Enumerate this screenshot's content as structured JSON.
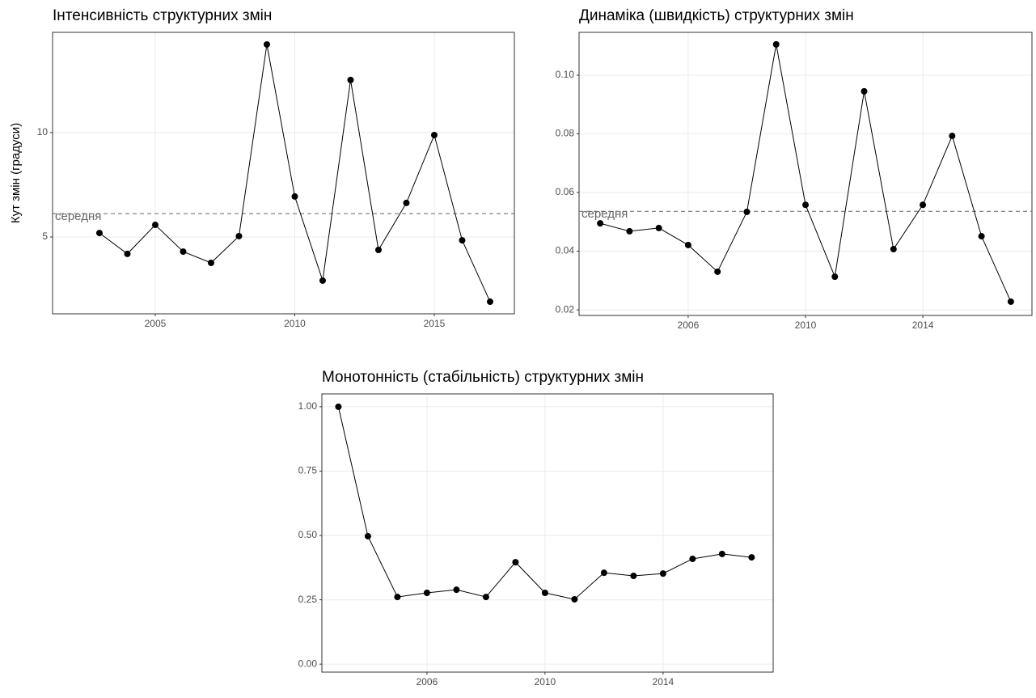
{
  "chart_data": [
    {
      "type": "line",
      "title": "Інтенсивність структурних змін",
      "y_label": "Кут змін (градуси)",
      "x": [
        2003,
        2004,
        2005,
        2006,
        2007,
        2008,
        2009,
        2010,
        2011,
        2012,
        2013,
        2014,
        2015,
        2016,
        2017
      ],
      "values": [
        5.19,
        4.19,
        5.58,
        4.3,
        3.76,
        5.04,
        14.22,
        6.94,
        2.91,
        12.52,
        4.38,
        6.63,
        9.88,
        4.84,
        1.9
      ],
      "color": "#000000",
      "xlim": [
        2001.32,
        2017.87
      ],
      "xticks": [
        2005,
        2010,
        2015
      ],
      "ylim": [
        1.32,
        14.8
      ],
      "yticks": [
        5,
        10
      ],
      "mean_line": {
        "value": 6.12,
        "label": "середня"
      },
      "grid": true
    },
    {
      "type": "line",
      "title": "Динаміка (швидкість) структурних змін",
      "x": [
        2003,
        2004,
        2005,
        2006,
        2007,
        2008,
        2009,
        2010,
        2011,
        2012,
        2013,
        2014,
        2015,
        2016,
        2017
      ],
      "values": [
        0.0495,
        0.0468,
        0.0479,
        0.0421,
        0.033,
        0.0534,
        0.1105,
        0.0558,
        0.0313,
        0.0945,
        0.0407,
        0.0558,
        0.0793,
        0.0451,
        0.0228
      ],
      "color": "#000000",
      "xlim": [
        2002.28,
        2017.72
      ],
      "xticks": [
        2006,
        2010,
        2014
      ],
      "ylim": [
        0.0181,
        0.1146
      ],
      "yticks": [
        {
          "value": 0.02,
          "label": "0.02"
        },
        {
          "value": 0.04,
          "label": "0.04"
        },
        {
          "value": 0.06,
          "label": "0.06"
        },
        {
          "value": 0.08,
          "label": "0.08"
        },
        {
          "value": 0.1,
          "label": "0.10"
        }
      ],
      "mean_line": {
        "value": 0.0536,
        "label": "середня"
      },
      "grid": true
    },
    {
      "type": "line",
      "title": "Монотонність (стабільність) структурних змін",
      "x": [
        2003,
        2004,
        2005,
        2006,
        2007,
        2008,
        2009,
        2010,
        2011,
        2012,
        2013,
        2014,
        2015,
        2016,
        2017
      ],
      "values": [
        1.0,
        0.497,
        0.261,
        0.277,
        0.289,
        0.261,
        0.396,
        0.277,
        0.252,
        0.355,
        0.343,
        0.352,
        0.409,
        0.428,
        0.415
      ],
      "color": "#000000",
      "xlim": [
        2002.44,
        2017.73
      ],
      "xticks": [
        2006,
        2010,
        2014
      ],
      "ylim": [
        -0.031,
        1.05
      ],
      "yticks": [
        {
          "value": 0,
          "label": "0.00"
        },
        {
          "value": 0.25,
          "label": "0.25"
        },
        {
          "value": 0.5,
          "label": "0.50"
        },
        {
          "value": 0.75,
          "label": "0.75"
        },
        {
          "value": 1,
          "label": "1.00"
        }
      ],
      "grid": true
    }
  ]
}
